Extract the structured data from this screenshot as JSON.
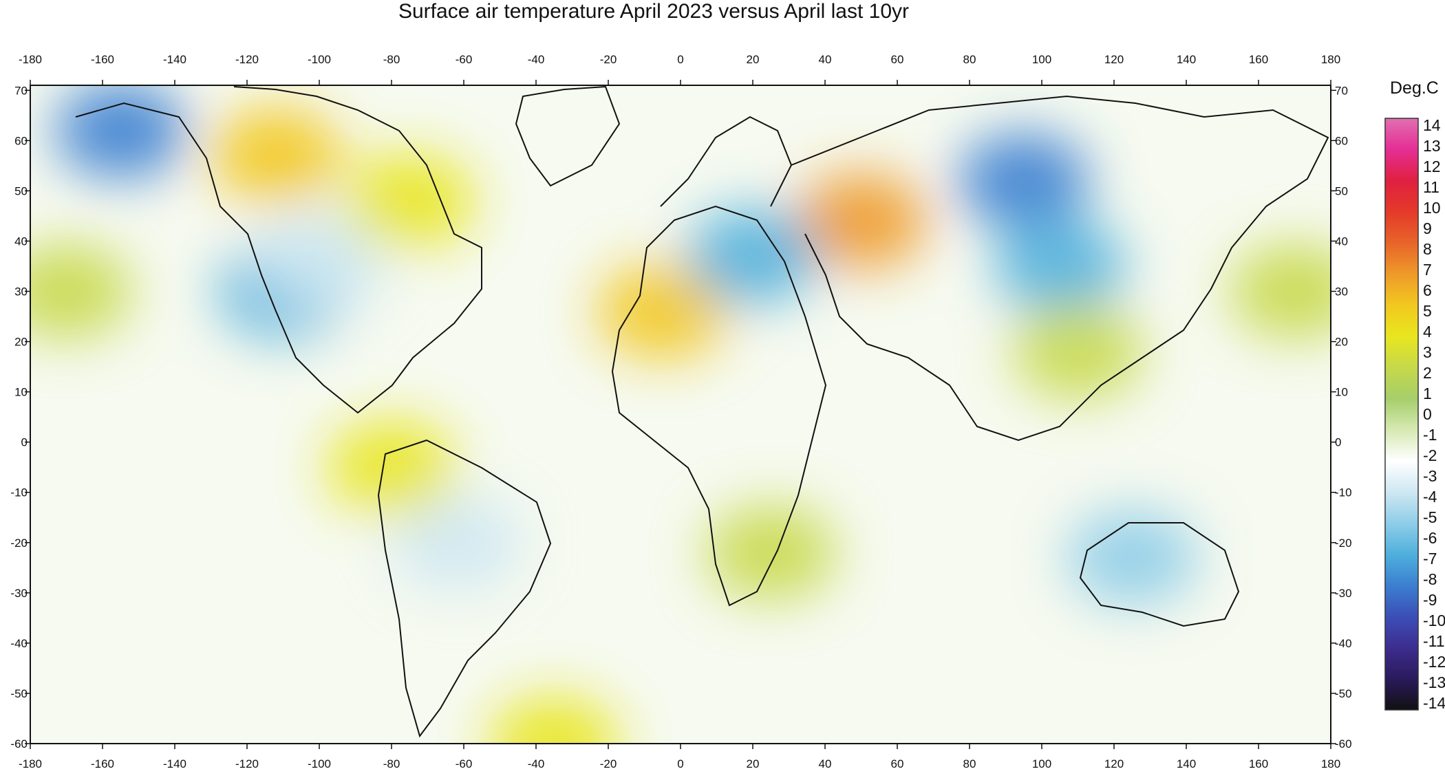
{
  "title": "Surface air temperature April 2023 versus April last 10yr",
  "colorbar": {
    "unit": "Deg.C",
    "min": -14,
    "max": 14,
    "labels": [
      "14",
      "13",
      "12",
      "11",
      "10",
      "9",
      "8",
      "7",
      "6",
      "5",
      "4",
      "3",
      "2",
      "1",
      "0",
      "-1",
      "-2",
      "-3",
      "-4",
      "-5",
      "-6",
      "-7",
      "-8",
      "-9",
      "-10",
      "-11",
      "-12",
      "-13",
      "-14"
    ],
    "colors": [
      "#e06fb0",
      "#e52e95",
      "#e02040",
      "#e43a2a",
      "#e8642a",
      "#ee9a2a",
      "#f2c81f",
      "#e8e61f",
      "#c6d94a",
      "#a6ce6a",
      "#d6e9b2",
      "#ffffff",
      "#cfe8f2",
      "#8fcde8",
      "#4fb0dd",
      "#3c7fd0",
      "#3b4fb8",
      "#3d2d8f",
      "#2a1a5c",
      "#111111"
    ]
  },
  "axes": {
    "lon_ticks": [
      "-180",
      "-160",
      "-140",
      "-120",
      "-100",
      "-80",
      "-60",
      "-40",
      "-20",
      "0",
      "20",
      "40",
      "60",
      "80",
      "100",
      "120",
      "140",
      "160",
      "180"
    ],
    "lat_ticks": [
      "70",
      "60",
      "50",
      "40",
      "30",
      "20",
      "10",
      "0",
      "-10",
      "-20",
      "-30",
      "-40",
      "-50",
      "-60"
    ],
    "lon_range": [
      -180,
      180
    ],
    "lat_range": [
      -60,
      71
    ]
  },
  "anomalies": [
    {
      "lon": -155,
      "lat": 62,
      "value": -8
    },
    {
      "lon": -112,
      "lat": 57,
      "value": 5
    },
    {
      "lon": -110,
      "lat": 30,
      "value": -6
    },
    {
      "lon": -100,
      "lat": 36,
      "value": -4
    },
    {
      "lon": -75,
      "lat": 48,
      "value": 3
    },
    {
      "lon": -5,
      "lat": 26,
      "value": 5
    },
    {
      "lon": 50,
      "lat": 44,
      "value": 6
    },
    {
      "lon": 20,
      "lat": 37,
      "value": -6
    },
    {
      "lon": 95,
      "lat": 52,
      "value": -8
    },
    {
      "lon": 105,
      "lat": 35,
      "value": -7
    },
    {
      "lon": 125,
      "lat": -23,
      "value": -5
    },
    {
      "lon": 110,
      "lat": 18,
      "value": 2
    },
    {
      "lon": 25,
      "lat": -22,
      "value": 2
    },
    {
      "lon": -62,
      "lat": -20,
      "value": -3
    },
    {
      "lon": -80,
      "lat": -5,
      "value": 3
    },
    {
      "lon": 170,
      "lat": 30,
      "value": 2
    },
    {
      "lon": -170,
      "lat": 30,
      "value": 2
    },
    {
      "lon": -35,
      "lat": -60,
      "value": 4
    }
  ]
}
